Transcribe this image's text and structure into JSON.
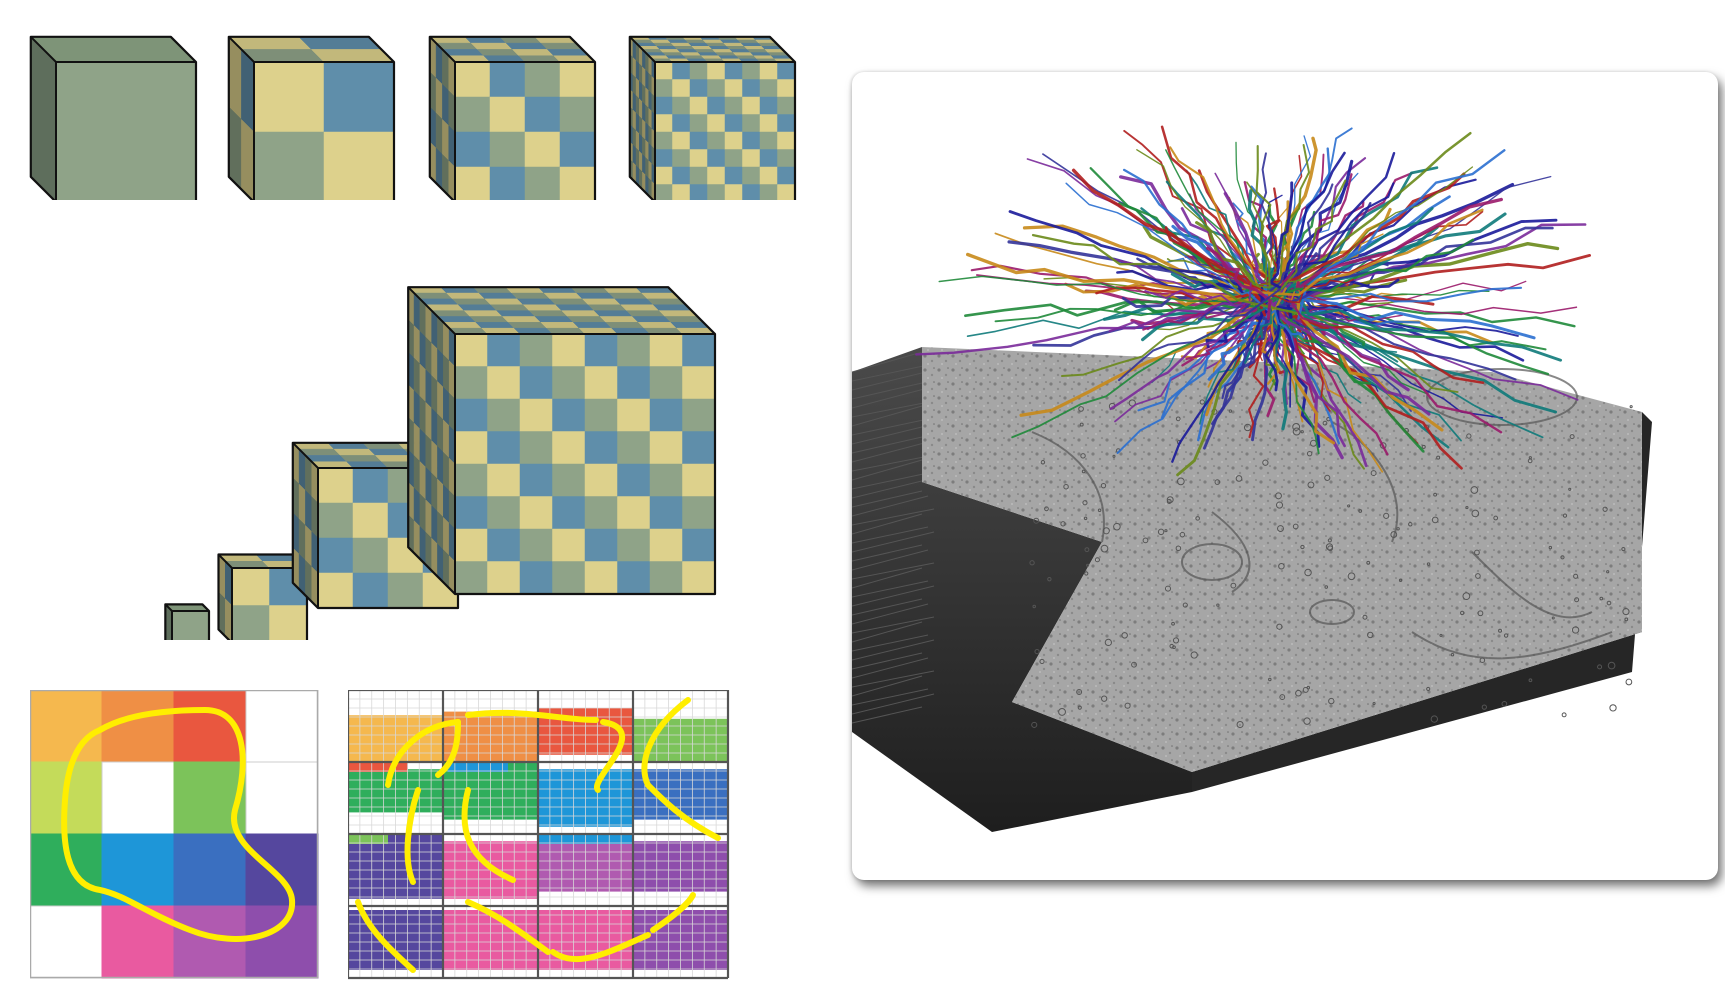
{
  "figure": {
    "panels": [
      "cube-subdivision-row",
      "cube-multiscale-pyramid",
      "segmentation-coarse-grid",
      "segmentation-fine-grid",
      "em-volume-neuron-rendering"
    ]
  },
  "cube_palette": {
    "solid_front": "#8fa388",
    "solid_side": "#5e6e5c",
    "solid_top": "#7e9478",
    "check_a": "#ddd18c",
    "check_b": "#5f8eaa",
    "check_c": "#8fa388",
    "outline": "#111111"
  },
  "cube_row": {
    "subdivisions": [
      1,
      2,
      4,
      8
    ]
  },
  "pyramid": {
    "levels": [
      {
        "subdivisions": 1
      },
      {
        "subdivisions": 2
      },
      {
        "subdivisions": 4
      },
      {
        "subdivisions": 8
      }
    ]
  },
  "segmentation_coarse": {
    "grid": [
      4,
      4
    ],
    "region_colors": [
      [
        "#f5b84e",
        "#ef8f45",
        "#e9573f",
        "#ffffff"
      ],
      [
        "#c4db5a",
        "#ffffff",
        "#7cc35a",
        "#ffffff"
      ],
      [
        "#2fae5c",
        "#1e96d8",
        "#3a6fc0",
        "#55479e"
      ],
      [
        "#ffffff",
        "#e95aa0",
        "#b05ab0",
        "#8e4eac"
      ]
    ],
    "contour_color": "#ffee00"
  },
  "segmentation_fine": {
    "grid": [
      4,
      4
    ],
    "fine_cells_per_block": 8,
    "contour_color": "#ffee00"
  },
  "em_volume": {
    "slab_color": "#9a9a9a",
    "edge_color": "#2a2a2a",
    "neurite_colors": [
      "#1a1a9a",
      "#1f8a3a",
      "#b01e1e",
      "#2a6fd0",
      "#7a2a9a",
      "#c88a1a",
      "#0e7a7a",
      "#6a8a1a",
      "#9a1a6a",
      "#333399"
    ]
  }
}
